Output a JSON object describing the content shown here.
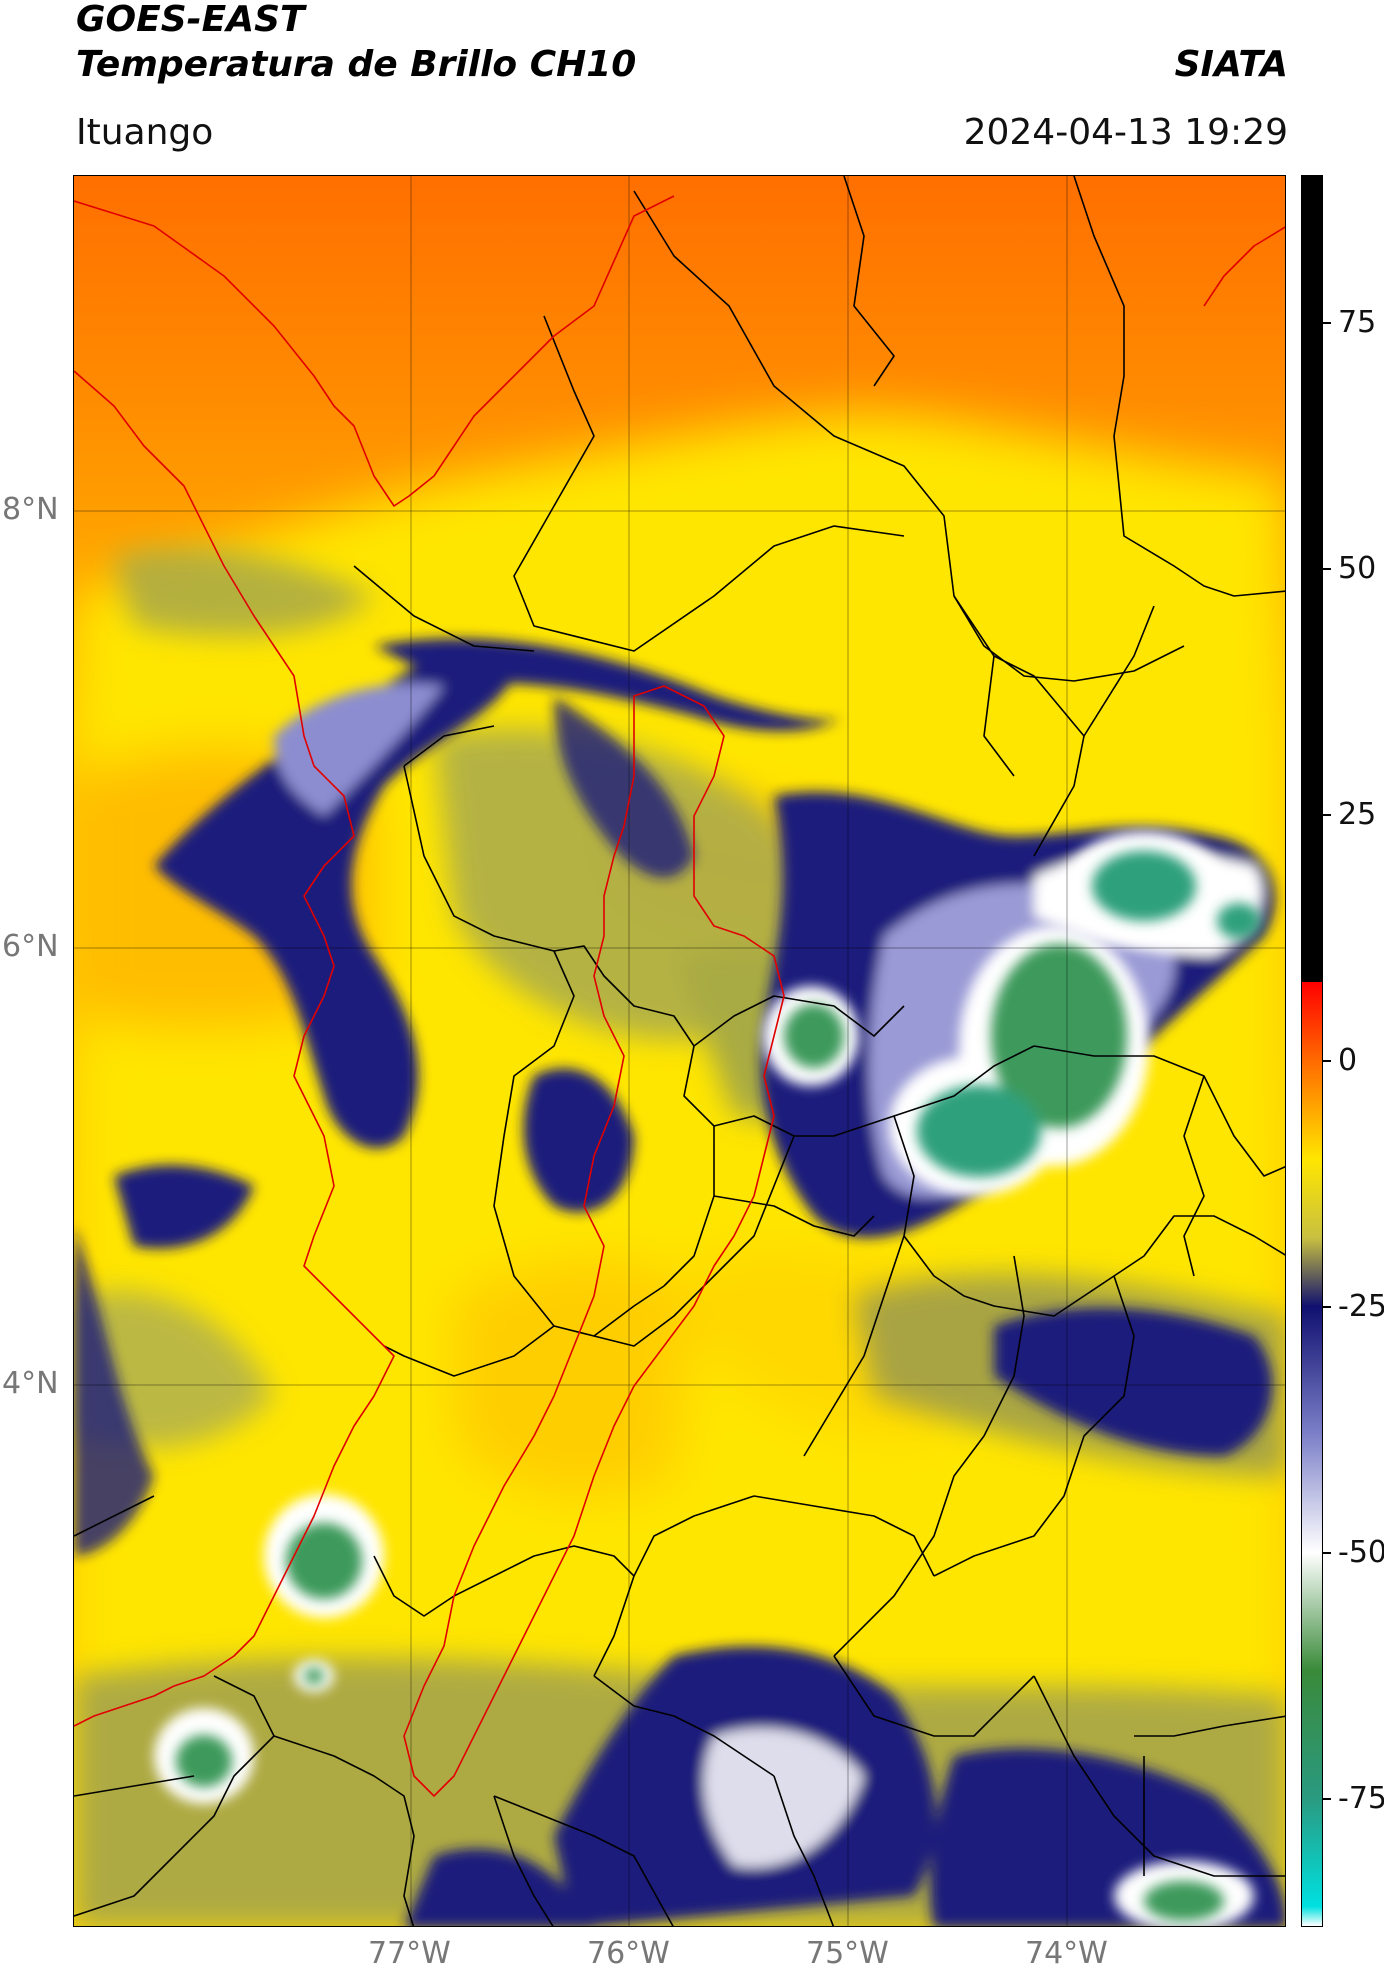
{
  "header": {
    "line1": "GOES-EAST",
    "line2": "Temperatura de Brillo CH10",
    "brand": "SIATA",
    "location": "Ituango",
    "datetime": "2024-04-13 19:29"
  },
  "axes": {
    "lat_labels": [
      "8°N",
      "6°N",
      "4°N"
    ],
    "lon_labels": [
      "77°W",
      "76°W",
      "75°W",
      "74°W"
    ]
  },
  "colorbar": {
    "ticks": [
      "75",
      "50",
      "25",
      "0",
      "-25",
      "-50",
      "-75"
    ],
    "ramp": [
      {
        "v": 90,
        "c": "#000000"
      },
      {
        "v": 8,
        "c": "#000000"
      },
      {
        "v": 8,
        "c": "#ff0000"
      },
      {
        "v": 0,
        "c": "#ff6a00"
      },
      {
        "v": -10,
        "c": "#ffe600"
      },
      {
        "v": -18,
        "c": "#c8c040"
      },
      {
        "v": -25,
        "c": "#101070"
      },
      {
        "v": -38,
        "c": "#7c80c8"
      },
      {
        "v": -50,
        "c": "#ffffff"
      },
      {
        "v": -62,
        "c": "#3a8a3a"
      },
      {
        "v": -75,
        "c": "#2a9a80"
      },
      {
        "v": -86,
        "c": "#00e0e0"
      },
      {
        "v": -88,
        "c": "#ffffff"
      }
    ]
  },
  "colors": {
    "orange": "#ff7a00",
    "orange_light": "#ffb000",
    "yellow": "#ffee00",
    "olive": "#b0b040",
    "navy": "#1a1a7a",
    "lavender": "#8f90d0",
    "green": "#3c9c5c",
    "teal": "#2ea07a",
    "border_red": "#e00000",
    "border_black": "#000000"
  }
}
